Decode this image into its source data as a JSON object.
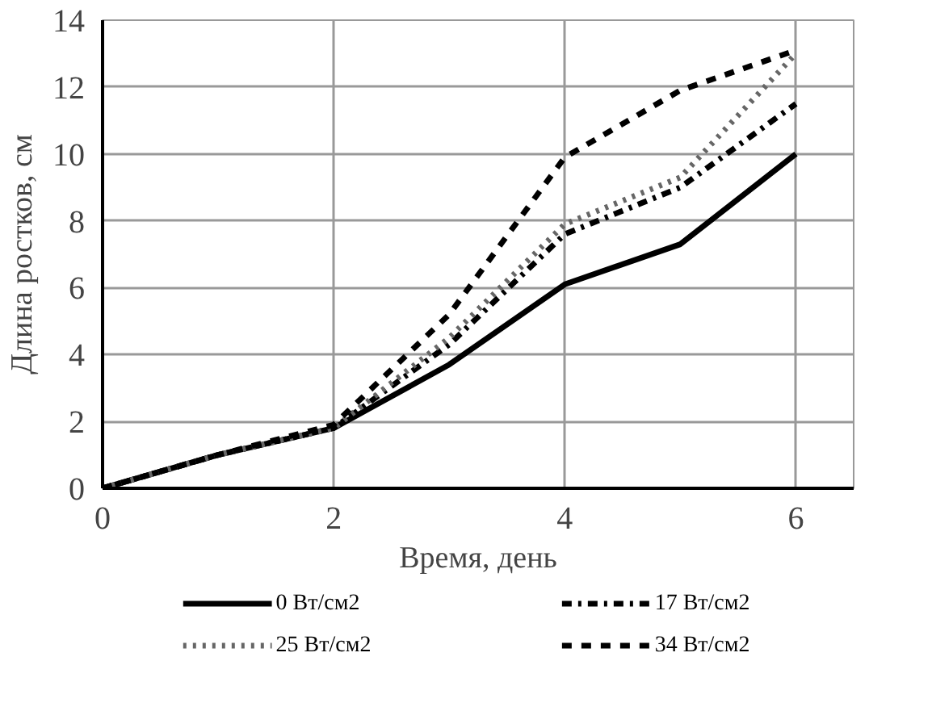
{
  "chart_data": {
    "type": "line",
    "xlabel": "Время, день",
    "ylabel": "Длина ростков, см",
    "x": [
      0,
      1,
      2,
      3,
      4,
      5,
      6
    ],
    "series": [
      {
        "name": "0 Вт/см2",
        "color": "#000000",
        "line_style": "solid",
        "values": [
          0,
          1.0,
          1.8,
          3.7,
          6.1,
          7.3,
          10
        ]
      },
      {
        "name": "17  Вт/см2",
        "color": "#000000",
        "line_style": "dashdot",
        "values": [
          0,
          1.0,
          1.8,
          4.3,
          7.6,
          9.0,
          11.5
        ]
      },
      {
        "name": "25  Вт/см2",
        "color": "#666666",
        "line_style": "dotted",
        "values": [
          0,
          1.0,
          1.8,
          4.5,
          7.9,
          9.3,
          13
        ]
      },
      {
        "name": "34  Вт/см2",
        "color": "#000000",
        "line_style": "dashed",
        "values": [
          0,
          1.0,
          1.9,
          5.2,
          9.9,
          11.9,
          13.1
        ]
      }
    ],
    "xlim": [
      0,
      6.5
    ],
    "ylim": [
      0,
      14
    ],
    "xticks": [
      0,
      2,
      4,
      6
    ],
    "yticks": [
      0,
      2,
      4,
      6,
      8,
      10,
      12,
      14
    ],
    "grid": true,
    "legend": "bottom",
    "marker": "none"
  }
}
